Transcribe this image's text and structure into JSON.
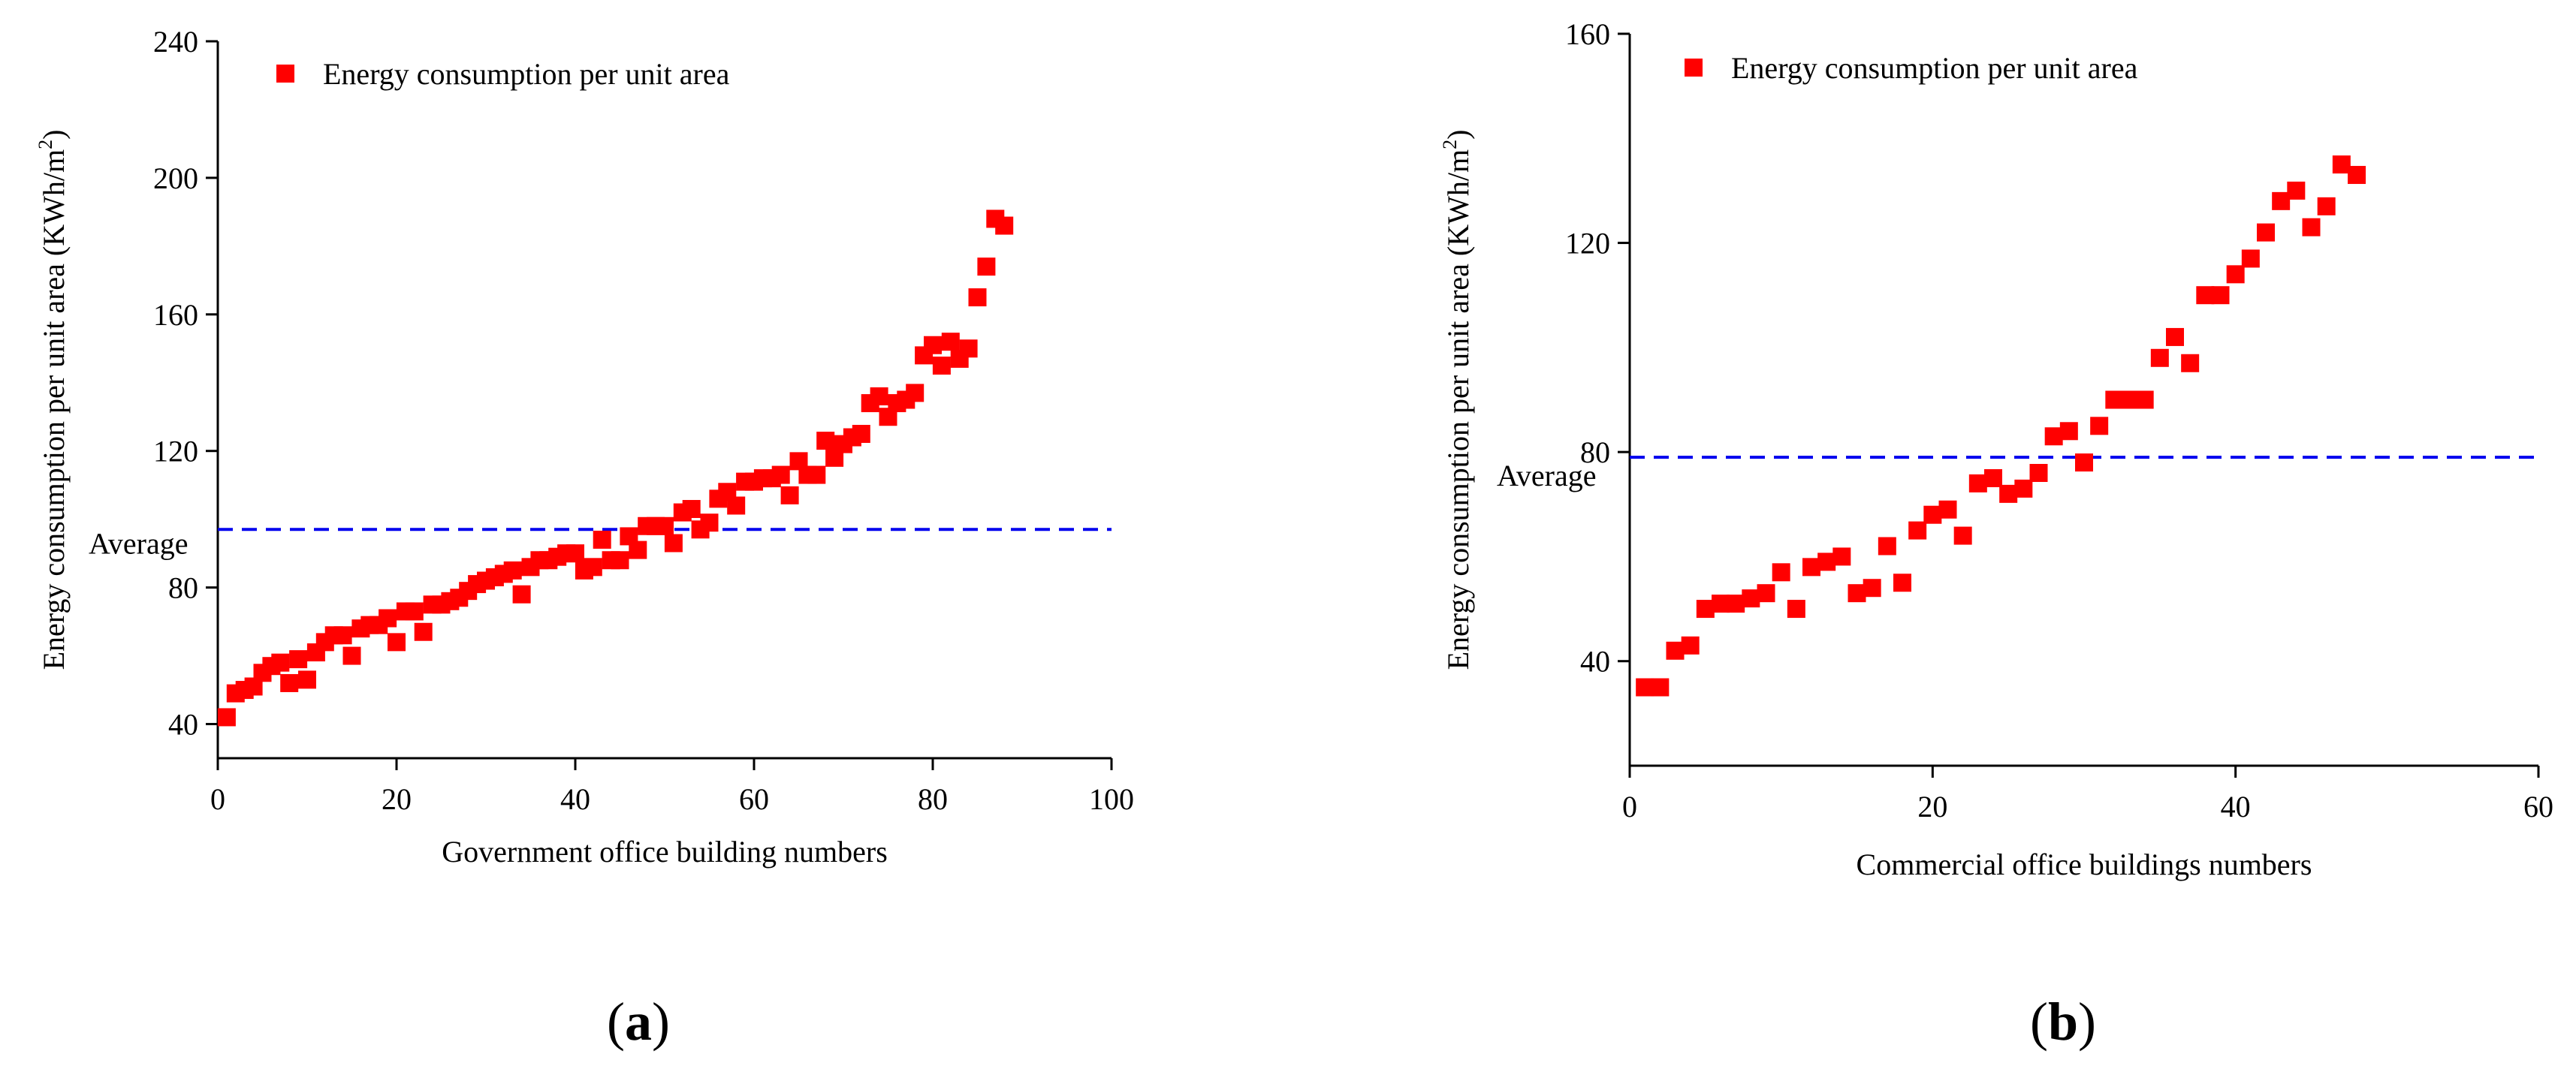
{
  "chart_data": [
    {
      "type": "scatter",
      "panel_label": "a",
      "xlabel": "Government office building numbers",
      "ylabel": "Energy consumption per unit area (KWh/m",
      "ylabel_sup": "2",
      "ylabel_close": ")",
      "xlim": [
        0,
        100
      ],
      "ylim": [
        30,
        240
      ],
      "xticks": [
        0,
        20,
        40,
        60,
        80,
        100
      ],
      "yticks": [
        40,
        80,
        120,
        160,
        200,
        240
      ],
      "legend": "Energy consumption per unit area",
      "legend_position": "top-left",
      "average_label": "Average",
      "average_value": 97,
      "marker_color": "#ff0000",
      "average_color": "#0000ee",
      "x": [
        1,
        2,
        3,
        4,
        5,
        6,
        7,
        8,
        9,
        10,
        11,
        12,
        13,
        14,
        15,
        16,
        17,
        18,
        19,
        20,
        21,
        22,
        23,
        24,
        25,
        26,
        27,
        28,
        29,
        30,
        31,
        32,
        33,
        34,
        35,
        36,
        37,
        38,
        39,
        40,
        41,
        42,
        43,
        44,
        45,
        46,
        47,
        48,
        49,
        50,
        51,
        52,
        53,
        54,
        55,
        56,
        57,
        58,
        59,
        60,
        61,
        62,
        63,
        64,
        65,
        66,
        67,
        68,
        69,
        70,
        71,
        72,
        73,
        74,
        75,
        76,
        77,
        78,
        79,
        80,
        81,
        82,
        83,
        84,
        85,
        86,
        87,
        88
      ],
      "y": [
        42,
        49,
        50,
        51,
        55,
        57,
        58,
        52,
        59,
        53,
        61,
        64,
        66,
        66,
        60,
        68,
        69,
        69,
        71,
        64,
        73,
        73,
        67,
        75,
        75,
        76,
        77,
        79,
        81,
        82,
        83,
        84,
        85,
        78,
        86,
        88,
        88,
        89,
        90,
        90,
        85,
        86,
        94,
        88,
        88,
        95,
        91,
        98,
        98,
        98,
        93,
        102,
        103,
        97,
        99,
        106,
        108,
        104,
        111,
        111,
        112,
        112,
        113,
        107,
        117,
        113,
        113,
        123,
        118,
        122,
        124,
        125,
        134,
        136,
        130,
        134,
        135,
        137,
        148,
        151,
        145,
        152,
        147,
        150,
        165,
        174,
        188,
        186
      ]
    },
    {
      "type": "scatter",
      "panel_label": "b",
      "xlabel": "Commercial office buildings numbers",
      "ylabel": "Energy consumption per unit area (KWh/m",
      "ylabel_sup": "2",
      "ylabel_close": ")",
      "xlim": [
        0,
        60
      ],
      "ylim": [
        20,
        160
      ],
      "xticks": [
        0,
        20,
        40,
        60
      ],
      "yticks": [
        40,
        80,
        120,
        160
      ],
      "legend": "Energy consumption per unit area",
      "legend_position": "top-left",
      "average_label": "Average",
      "average_value": 79,
      "marker_color": "#ff0000",
      "average_color": "#0000ee",
      "x": [
        1,
        2,
        3,
        4,
        5,
        6,
        7,
        8,
        9,
        10,
        11,
        12,
        13,
        14,
        15,
        16,
        17,
        18,
        19,
        20,
        21,
        22,
        23,
        24,
        25,
        26,
        27,
        28,
        29,
        30,
        31,
        32,
        33,
        34,
        35,
        36,
        37,
        38,
        39,
        40,
        41,
        42,
        43,
        44,
        45,
        46,
        47,
        48
      ],
      "y": [
        35,
        35,
        42,
        43,
        50,
        51,
        51,
        52,
        53,
        57,
        50,
        58,
        59,
        60,
        53,
        54,
        62,
        55,
        65,
        68,
        69,
        64,
        74,
        75,
        72,
        73,
        76,
        83,
        84,
        78,
        85,
        90,
        90,
        90,
        98,
        102,
        97,
        110,
        110,
        114,
        117,
        122,
        128,
        130,
        123,
        127,
        135,
        133
      ]
    }
  ]
}
